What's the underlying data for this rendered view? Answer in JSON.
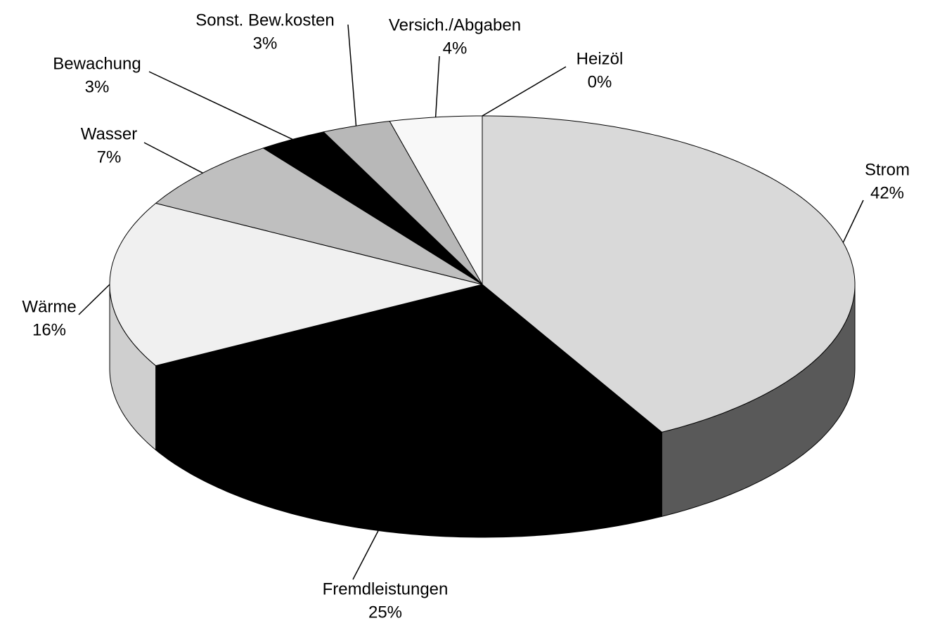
{
  "chart_data": {
    "type": "pie",
    "categories": [
      "Strom",
      "Fremdleistungen",
      "Wärme",
      "Wasser",
      "Bewachung",
      "Sonst. Bew.kosten",
      "Versich./Abgaben",
      "Heizöl"
    ],
    "values": [
      42,
      25,
      16,
      7,
      3,
      3,
      4,
      0
    ],
    "value_labels": [
      "42%",
      "25%",
      "16%",
      "7%",
      "3%",
      "3%",
      "4%",
      "0%"
    ],
    "colors": [
      "#d9d9d9",
      "#000000",
      "#f0f0f0",
      "#bfbfbf",
      "#000000",
      "#b8b8b8",
      "#f8f8f8",
      "#a0a0a0"
    ],
    "side_colors": [
      "#595959",
      "#000000",
      "#cfcfcf",
      "#9a9a9a",
      "#000000",
      "#909090",
      "#d0d0d0",
      "#808080"
    ]
  }
}
